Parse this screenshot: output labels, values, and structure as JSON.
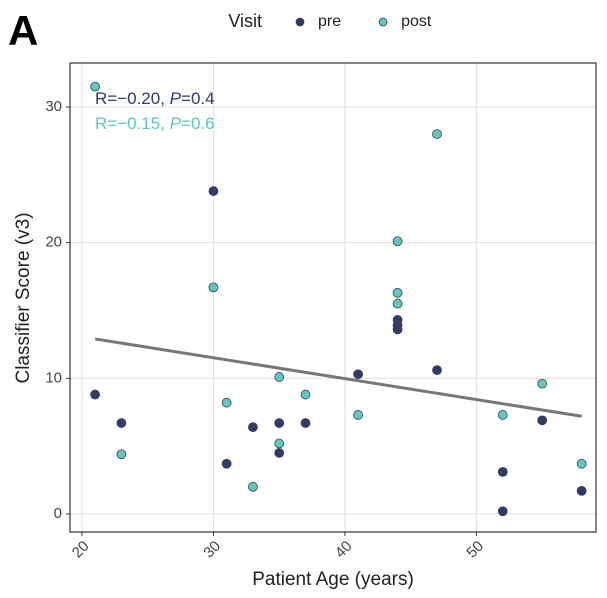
{
  "chart_data": {
    "type": "scatter",
    "panel_label": "A",
    "legend_title": "Visit",
    "x_label": "Patient Age (years)",
    "y_label": "Classifier Score (v3)",
    "xlim": [
      19.09,
      59.09
    ],
    "xticks": [
      20,
      30,
      40,
      50
    ],
    "ylim": [
      -1.33,
      33.24
    ],
    "yticks": [
      0,
      10,
      20,
      30
    ],
    "grid": true,
    "legend_position": "top",
    "series": [
      {
        "name": "pre",
        "color": "#2f3a6e",
        "x": [
          21,
          23,
          30,
          31,
          33,
          35,
          35,
          37,
          41,
          44,
          44,
          44,
          47,
          52,
          52,
          55,
          58
        ],
        "values": [
          8.8,
          6.7,
          23.8,
          3.7,
          6.4,
          6.7,
          4.5,
          6.7,
          10.3,
          14.3,
          13.9,
          13.6,
          10.6,
          3.1,
          0.2,
          6.9,
          1.7
        ]
      },
      {
        "name": "post",
        "color": "#5cc7c3",
        "x": [
          21,
          23,
          30,
          31,
          33,
          35,
          35,
          37,
          41,
          44,
          44,
          44,
          47,
          52,
          55,
          58
        ],
        "values": [
          31.5,
          4.4,
          16.7,
          8.2,
          2.0,
          10.1,
          5.2,
          8.8,
          7.3,
          20.1,
          16.3,
          15.5,
          28.0,
          7.3,
          9.6,
          3.7
        ]
      }
    ],
    "trend": {
      "color": "#777777",
      "x": [
        21,
        58
      ],
      "y": [
        12.9,
        7.2
      ]
    },
    "annotations": [
      {
        "text": [
          "R=−0.20, ",
          "P",
          "=0.4"
        ],
        "color": "#2f3a6e"
      },
      {
        "text": [
          "R=−0.15, ",
          "P",
          "=0.6"
        ],
        "color": "#5cc7c3"
      }
    ]
  }
}
